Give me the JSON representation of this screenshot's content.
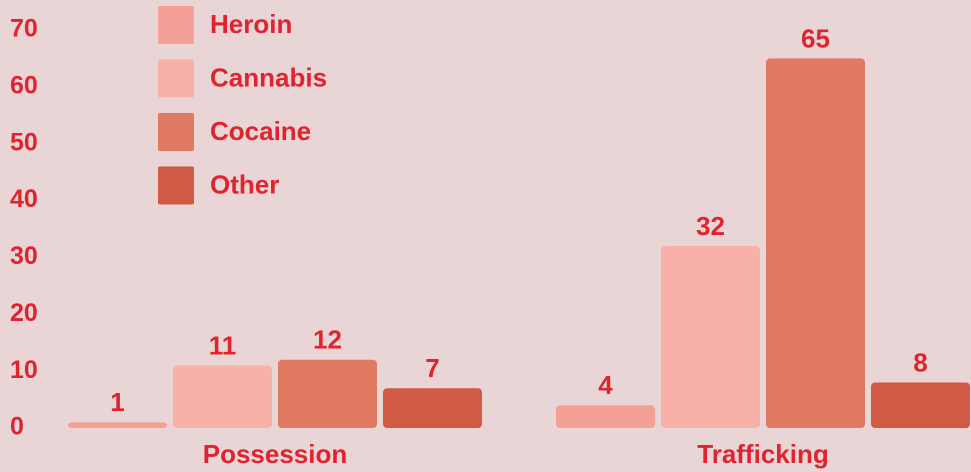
{
  "chart_data": {
    "type": "bar",
    "categories": [
      "Possession",
      "Trafficking"
    ],
    "series": [
      {
        "name": "Heroin",
        "color": "#f4a097",
        "values": [
          1,
          4
        ]
      },
      {
        "name": "Cannabis",
        "color": "#f8b0a9",
        "values": [
          11,
          32
        ]
      },
      {
        "name": "Cocaine",
        "color": "#e07a62",
        "values": [
          12,
          65
        ]
      },
      {
        "name": "Other",
        "color": "#d05a44",
        "values": [
          7,
          8
        ]
      }
    ],
    "ylim": [
      0,
      70
    ],
    "yticks": [
      0,
      10,
      20,
      30,
      40,
      50,
      60,
      70
    ],
    "grid": false,
    "legend": "top-left"
  }
}
